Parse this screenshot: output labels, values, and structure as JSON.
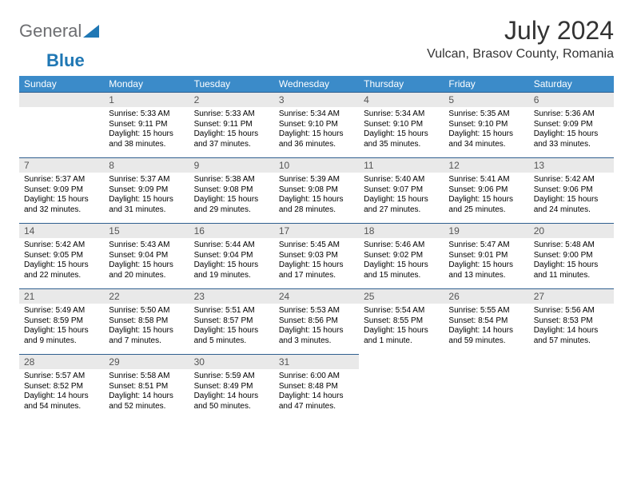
{
  "logo": {
    "part1": "General",
    "part2": "Blue"
  },
  "title": "July 2024",
  "location": "Vulcan, Brasov County, Romania",
  "colors": {
    "header_bg": "#3b8bc9",
    "daynum_bg": "#e9e9e9",
    "border": "#2f5f8f",
    "logo_gray": "#6d6e71",
    "logo_blue": "#1f77b4"
  },
  "weekdays": [
    "Sunday",
    "Monday",
    "Tuesday",
    "Wednesday",
    "Thursday",
    "Friday",
    "Saturday"
  ],
  "grid": {
    "start_weekday_index": 1,
    "days_in_month": 31
  },
  "days": {
    "1": {
      "sunrise": "5:33 AM",
      "sunset": "9:11 PM",
      "daylight": "15 hours and 38 minutes."
    },
    "2": {
      "sunrise": "5:33 AM",
      "sunset": "9:11 PM",
      "daylight": "15 hours and 37 minutes."
    },
    "3": {
      "sunrise": "5:34 AM",
      "sunset": "9:10 PM",
      "daylight": "15 hours and 36 minutes."
    },
    "4": {
      "sunrise": "5:34 AM",
      "sunset": "9:10 PM",
      "daylight": "15 hours and 35 minutes."
    },
    "5": {
      "sunrise": "5:35 AM",
      "sunset": "9:10 PM",
      "daylight": "15 hours and 34 minutes."
    },
    "6": {
      "sunrise": "5:36 AM",
      "sunset": "9:09 PM",
      "daylight": "15 hours and 33 minutes."
    },
    "7": {
      "sunrise": "5:37 AM",
      "sunset": "9:09 PM",
      "daylight": "15 hours and 32 minutes."
    },
    "8": {
      "sunrise": "5:37 AM",
      "sunset": "9:09 PM",
      "daylight": "15 hours and 31 minutes."
    },
    "9": {
      "sunrise": "5:38 AM",
      "sunset": "9:08 PM",
      "daylight": "15 hours and 29 minutes."
    },
    "10": {
      "sunrise": "5:39 AM",
      "sunset": "9:08 PM",
      "daylight": "15 hours and 28 minutes."
    },
    "11": {
      "sunrise": "5:40 AM",
      "sunset": "9:07 PM",
      "daylight": "15 hours and 27 minutes."
    },
    "12": {
      "sunrise": "5:41 AM",
      "sunset": "9:06 PM",
      "daylight": "15 hours and 25 minutes."
    },
    "13": {
      "sunrise": "5:42 AM",
      "sunset": "9:06 PM",
      "daylight": "15 hours and 24 minutes."
    },
    "14": {
      "sunrise": "5:42 AM",
      "sunset": "9:05 PM",
      "daylight": "15 hours and 22 minutes."
    },
    "15": {
      "sunrise": "5:43 AM",
      "sunset": "9:04 PM",
      "daylight": "15 hours and 20 minutes."
    },
    "16": {
      "sunrise": "5:44 AM",
      "sunset": "9:04 PM",
      "daylight": "15 hours and 19 minutes."
    },
    "17": {
      "sunrise": "5:45 AM",
      "sunset": "9:03 PM",
      "daylight": "15 hours and 17 minutes."
    },
    "18": {
      "sunrise": "5:46 AM",
      "sunset": "9:02 PM",
      "daylight": "15 hours and 15 minutes."
    },
    "19": {
      "sunrise": "5:47 AM",
      "sunset": "9:01 PM",
      "daylight": "15 hours and 13 minutes."
    },
    "20": {
      "sunrise": "5:48 AM",
      "sunset": "9:00 PM",
      "daylight": "15 hours and 11 minutes."
    },
    "21": {
      "sunrise": "5:49 AM",
      "sunset": "8:59 PM",
      "daylight": "15 hours and 9 minutes."
    },
    "22": {
      "sunrise": "5:50 AM",
      "sunset": "8:58 PM",
      "daylight": "15 hours and 7 minutes."
    },
    "23": {
      "sunrise": "5:51 AM",
      "sunset": "8:57 PM",
      "daylight": "15 hours and 5 minutes."
    },
    "24": {
      "sunrise": "5:53 AM",
      "sunset": "8:56 PM",
      "daylight": "15 hours and 3 minutes."
    },
    "25": {
      "sunrise": "5:54 AM",
      "sunset": "8:55 PM",
      "daylight": "15 hours and 1 minute."
    },
    "26": {
      "sunrise": "5:55 AM",
      "sunset": "8:54 PM",
      "daylight": "14 hours and 59 minutes."
    },
    "27": {
      "sunrise": "5:56 AM",
      "sunset": "8:53 PM",
      "daylight": "14 hours and 57 minutes."
    },
    "28": {
      "sunrise": "5:57 AM",
      "sunset": "8:52 PM",
      "daylight": "14 hours and 54 minutes."
    },
    "29": {
      "sunrise": "5:58 AM",
      "sunset": "8:51 PM",
      "daylight": "14 hours and 52 minutes."
    },
    "30": {
      "sunrise": "5:59 AM",
      "sunset": "8:49 PM",
      "daylight": "14 hours and 50 minutes."
    },
    "31": {
      "sunrise": "6:00 AM",
      "sunset": "8:48 PM",
      "daylight": "14 hours and 47 minutes."
    }
  },
  "labels": {
    "sunrise": "Sunrise:",
    "sunset": "Sunset:",
    "daylight": "Daylight:"
  }
}
